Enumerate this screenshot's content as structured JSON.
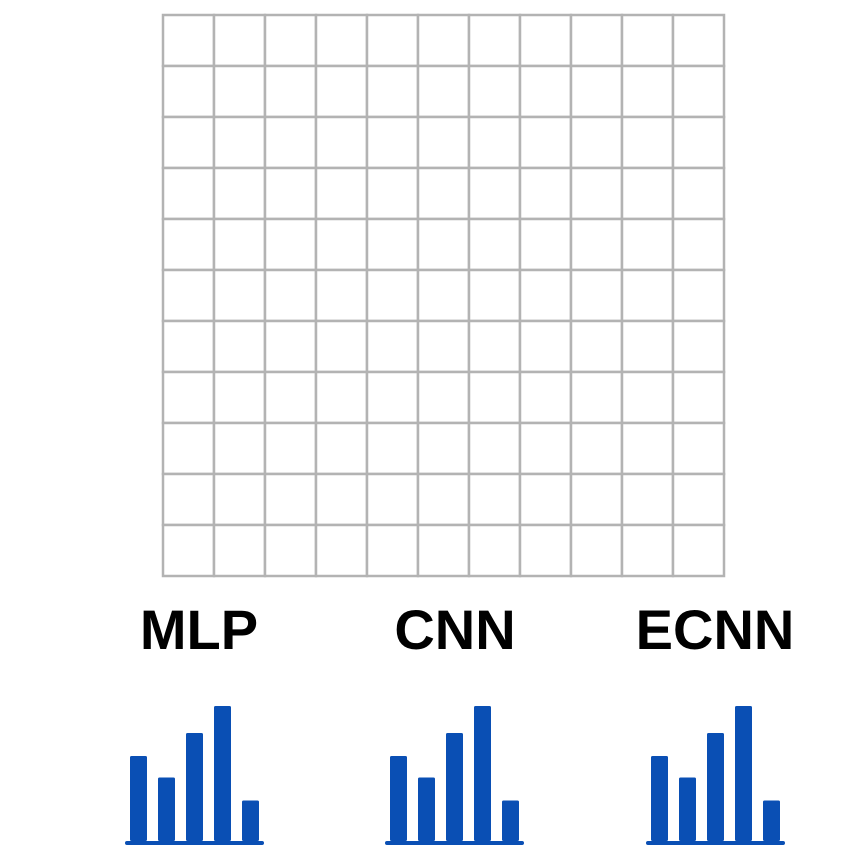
{
  "grid": {
    "rows": 11,
    "cols": 11,
    "line_color": "#b3b3b3",
    "fill_color": "#ffffff"
  },
  "models": [
    {
      "label": "MLP",
      "icon": "bar-chart-icon",
      "bar_values": [
        0.63,
        0.47,
        0.8,
        1.0,
        0.3
      ]
    },
    {
      "label": "CNN",
      "icon": "bar-chart-icon",
      "bar_values": [
        0.63,
        0.47,
        0.8,
        1.0,
        0.3
      ]
    },
    {
      "label": "ECNN",
      "icon": "bar-chart-icon",
      "bar_values": [
        0.63,
        0.47,
        0.8,
        1.0,
        0.3
      ]
    }
  ],
  "colors": {
    "bar": "#0a4fb4",
    "label": "#000000"
  }
}
